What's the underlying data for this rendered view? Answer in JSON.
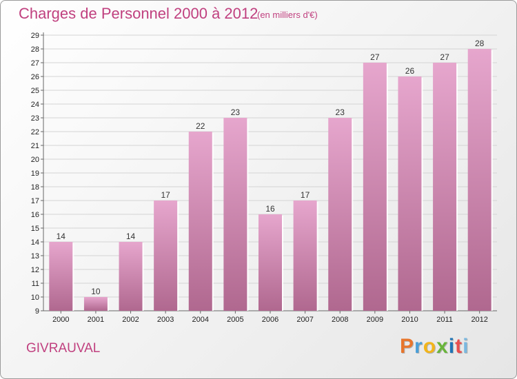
{
  "title": "Charges de Personnel 2000 à 2012",
  "subtitle": "(en milliers d'€)",
  "commune": "GIVRAUVAL",
  "logo": {
    "letters": [
      "P",
      "r",
      "o",
      "x",
      "i",
      "t",
      "i"
    ],
    "colors": [
      "#e8762c",
      "#4a9fd8",
      "#f2b51b",
      "#69b53a",
      "#1f74b6",
      "#e94e4e",
      "#7ab8e0"
    ]
  },
  "colors": {
    "bar": "#d77fb3",
    "text": "#c0407f"
  },
  "chart_data": {
    "type": "bar",
    "title": "Charges de Personnel 2000 à 2012",
    "subtitle": "(en milliers d'€)",
    "categories": [
      "2000",
      "2001",
      "2002",
      "2003",
      "2004",
      "2005",
      "2006",
      "2007",
      "2008",
      "2009",
      "2010",
      "2011",
      "2012"
    ],
    "values": [
      14,
      10,
      14,
      17,
      22,
      23,
      16,
      17,
      23,
      27,
      26,
      27,
      28
    ],
    "ylim": [
      9,
      29
    ],
    "yticks": [
      9,
      10,
      11,
      12,
      13,
      14,
      15,
      16,
      17,
      18,
      19,
      20,
      21,
      22,
      23,
      24,
      25,
      26,
      27,
      28,
      29
    ],
    "grid": true,
    "xlabel": "",
    "ylabel": ""
  }
}
